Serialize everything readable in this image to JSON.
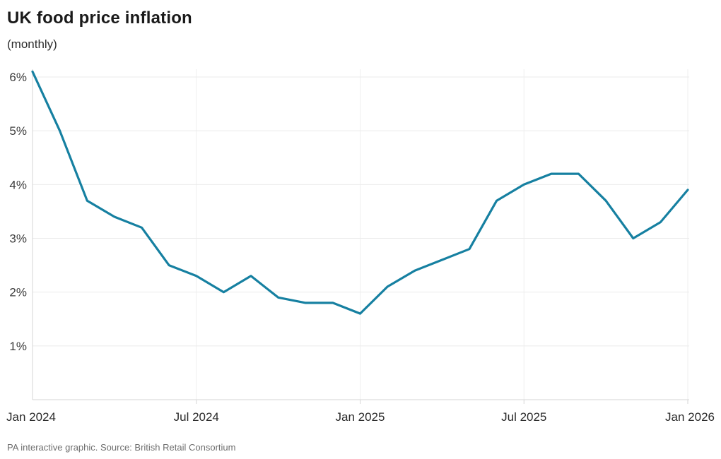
{
  "header": {
    "title": "UK food price inflation",
    "subtitle": "(monthly)"
  },
  "footer": {
    "source": "PA interactive graphic. Source: British Retail Consortium"
  },
  "chart_data": {
    "type": "line",
    "title": "UK food price inflation",
    "subtitle": "(monthly)",
    "unit": "%",
    "x": [
      "Jan 2024",
      "Feb 2024",
      "Mar 2024",
      "Apr 2024",
      "May 2024",
      "Jun 2024",
      "Jul 2024",
      "Aug 2024",
      "Sep 2024",
      "Oct 2024",
      "Nov 2024",
      "Dec 2024",
      "Jan 2025",
      "Feb 2025",
      "Mar 2025",
      "Apr 2025",
      "May 2025",
      "Jun 2025",
      "Jul 2025",
      "Aug 2025",
      "Sep 2025",
      "Oct 2025",
      "Nov 2025",
      "Dec 2025",
      "Jan 2026"
    ],
    "values": [
      6.1,
      5.0,
      3.7,
      3.4,
      3.2,
      2.5,
      2.3,
      2.0,
      2.3,
      1.9,
      1.8,
      1.8,
      1.6,
      2.1,
      2.4,
      2.6,
      2.8,
      3.7,
      4.0,
      4.2,
      4.2,
      3.7,
      3.0,
      3.3,
      3.9
    ],
    "y_ticks": [
      1,
      2,
      3,
      4,
      5,
      6
    ],
    "y_tick_labels": [
      "1%",
      "2%",
      "3%",
      "4%",
      "5%",
      "6%"
    ],
    "x_tick_indices": [
      0,
      6,
      12,
      18,
      24
    ],
    "x_tick_labels": [
      "Jan 2024",
      "Jul 2024",
      "Jan 2025",
      "Jul 2025",
      "Jan 2026"
    ],
    "ylim": [
      0,
      6.2
    ],
    "grid": true,
    "legend": "none",
    "colors": {
      "line": "#1680A1",
      "hgrid": "#ebebeb",
      "vgrid": "#efefef",
      "axis": "#d6d6d6",
      "y_tick_text": "#3d3d3d",
      "x_tick_text": "#2b2b2b"
    }
  }
}
